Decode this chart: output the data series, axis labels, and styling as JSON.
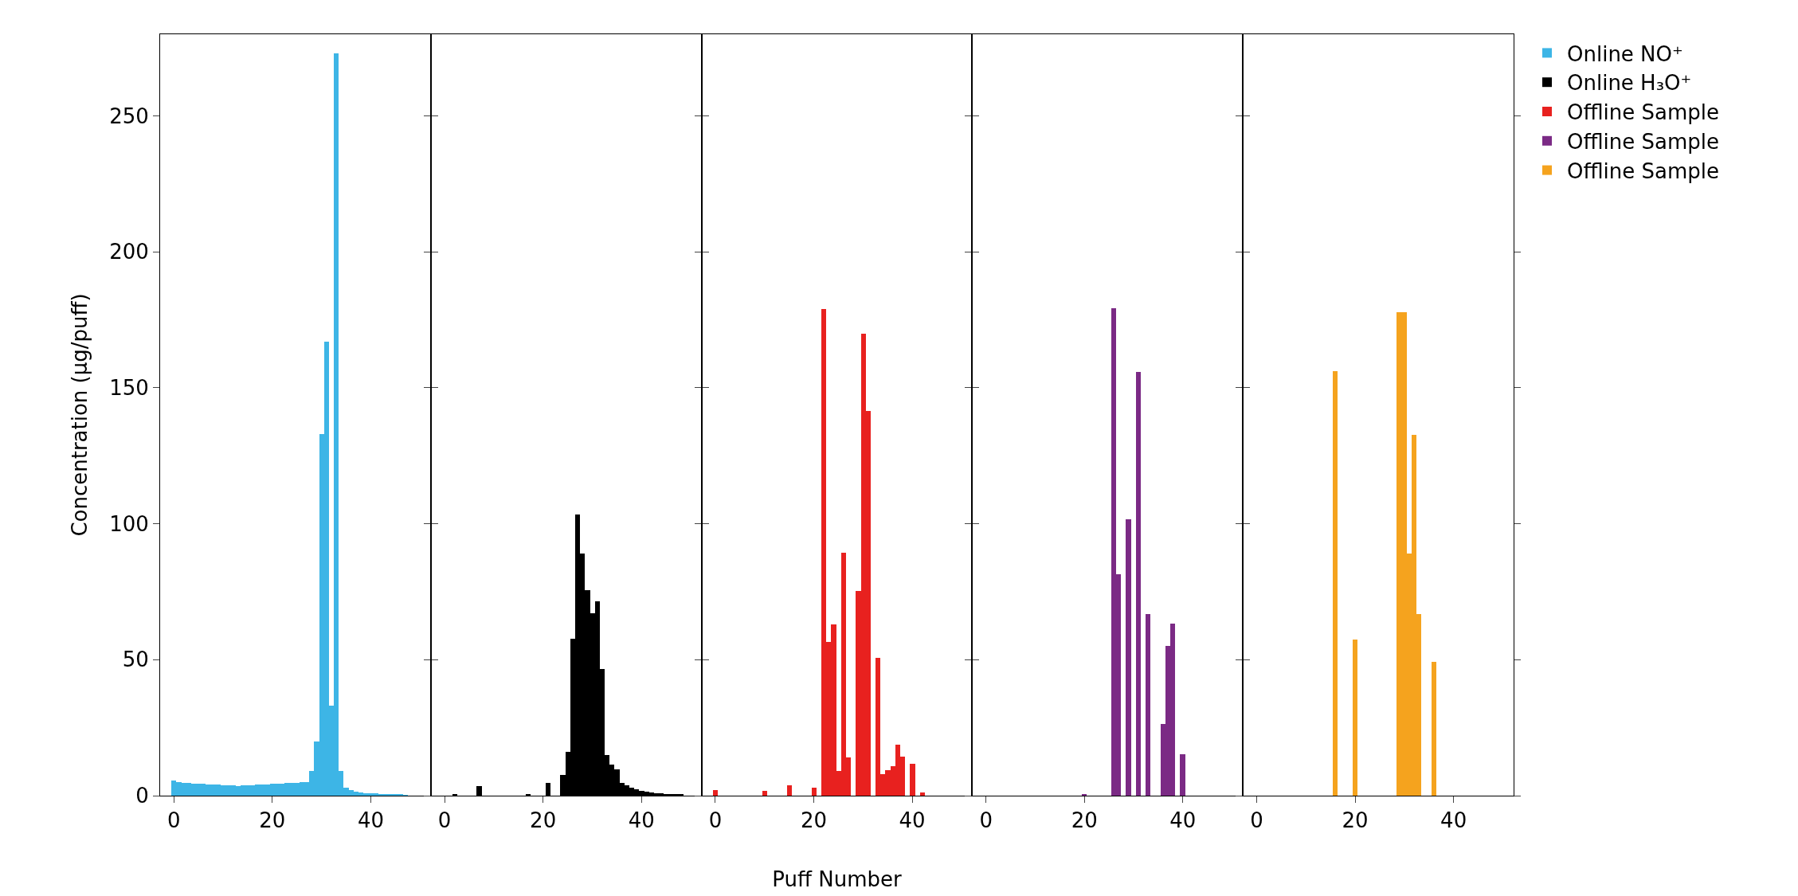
{
  "chart_data": [
    {
      "type": "bar",
      "ylabel": "Concentration (µg/puff)",
      "xlim": [
        -2.8,
        52.2
      ],
      "xticks": [
        0,
        20,
        40
      ],
      "ylim": [
        0,
        280
      ],
      "yticks": [
        0,
        50,
        100,
        150,
        200,
        250
      ],
      "legend": "top right",
      "grid": false,
      "series": [
        {
          "name": "Online NO⁺",
          "color": "#3db5e6",
          "x": [
            0,
            1,
            2,
            3,
            4,
            5,
            6,
            7,
            8,
            9,
            10,
            11,
            12,
            13,
            14,
            15,
            16,
            17,
            18,
            19,
            20,
            21,
            22,
            23,
            24,
            25,
            26,
            27,
            28,
            29,
            30,
            31,
            32,
            33,
            34,
            35,
            36,
            37,
            38,
            39,
            40,
            41,
            42,
            43,
            44,
            45,
            46,
            47
          ],
          "values": [
            5.5,
            5,
            4.8,
            4.6,
            4.5,
            4.4,
            4.3,
            4.2,
            4.1,
            4,
            3.9,
            3.8,
            3.7,
            3.6,
            3.7,
            3.8,
            3.9,
            4,
            4.1,
            4.2,
            4.3,
            4.4,
            4.5,
            4.6,
            4.7,
            4.8,
            4.9,
            5,
            9,
            20,
            133,
            167,
            33,
            273,
            9,
            3,
            2,
            1.5,
            1.2,
            1,
            0.9,
            0.8,
            0.7,
            0.6,
            0.5,
            0.4,
            0.3,
            0.2
          ]
        }
      ]
    },
    {
      "type": "bar",
      "xlim": [
        -2.8,
        52.2
      ],
      "xticks": [
        0,
        20,
        40
      ],
      "ylim": [
        0,
        280
      ],
      "yticks": [
        0,
        50,
        100,
        150,
        200,
        250
      ],
      "tick_labels": "x",
      "legend": "top right",
      "grid": false,
      "series": [
        {
          "name": "Online H₃O⁺",
          "color": "#000000",
          "x": [
            2,
            7,
            17,
            21,
            24,
            25,
            26,
            27,
            28,
            29,
            30,
            31,
            32,
            33,
            34,
            35,
            36,
            37,
            38,
            39,
            40,
            41,
            42,
            43,
            44,
            45,
            46,
            47,
            48
          ],
          "values": [
            0.5,
            3.4,
            0.5,
            4.8,
            7.7,
            16,
            57.7,
            103.4,
            89,
            75.5,
            67,
            71.4,
            46.5,
            15,
            11.5,
            9.6,
            4.8,
            3.8,
            2.9,
            2.4,
            1.9,
            1.5,
            1.2,
            1,
            0.8,
            0.6,
            0.5,
            0.4,
            0.3
          ]
        }
      ]
    },
    {
      "type": "bar",
      "xlabel": "Puff Number",
      "xlim": [
        -2.8,
        52.2
      ],
      "xticks": [
        0,
        20,
        40
      ],
      "ylim": [
        0,
        280
      ],
      "yticks": [
        0,
        50,
        100,
        150,
        200,
        250
      ],
      "tick_labels": "x",
      "legend": "top right",
      "grid": false,
      "series": [
        {
          "name": "Offline Sample",
          "color": "#e8211f",
          "x": [
            0,
            10,
            15,
            20,
            22,
            23,
            24,
            25,
            26,
            27,
            29,
            30,
            31,
            33,
            34,
            35,
            36,
            37,
            38,
            40,
            42
          ],
          "values": [
            2,
            1.8,
            3.8,
            3,
            179,
            56.5,
            63,
            9,
            89.4,
            14,
            75.3,
            170,
            141.6,
            50.7,
            8,
            9.5,
            10.8,
            18.6,
            14.4,
            11.7,
            1.3
          ]
        }
      ]
    },
    {
      "type": "bar",
      "xlim": [
        -2.8,
        52.2
      ],
      "xticks": [
        0,
        20,
        40
      ],
      "ylim": [
        0,
        280
      ],
      "yticks": [
        0,
        50,
        100,
        150,
        200,
        250
      ],
      "tick_labels": "x",
      "legend": "top right",
      "grid": false,
      "series": [
        {
          "name": "Offline Sample",
          "color": "#7b2a85",
          "x": [
            20,
            26,
            27,
            29,
            31,
            33,
            36,
            37,
            38,
            40
          ],
          "values": [
            0.7,
            179.3,
            81.3,
            101.5,
            155.7,
            66.8,
            26.3,
            55,
            63.4,
            15.1
          ]
        }
      ]
    },
    {
      "type": "bar",
      "xlim": [
        -2.8,
        52.2
      ],
      "xticks": [
        0,
        20,
        40
      ],
      "ylim": [
        0,
        280
      ],
      "yticks": [
        0,
        50,
        100,
        150,
        200,
        250
      ],
      "tick_labels": "x",
      "legend": "top right",
      "grid": false,
      "series": [
        {
          "name": "Offline Sample",
          "color": "#f5a31e",
          "x": [
            16,
            20,
            29,
            30,
            31,
            32,
            33,
            36
          ],
          "values": [
            156,
            57.4,
            177.8,
            177.8,
            89.1,
            132.6,
            66.8,
            49.3
          ]
        }
      ]
    }
  ]
}
